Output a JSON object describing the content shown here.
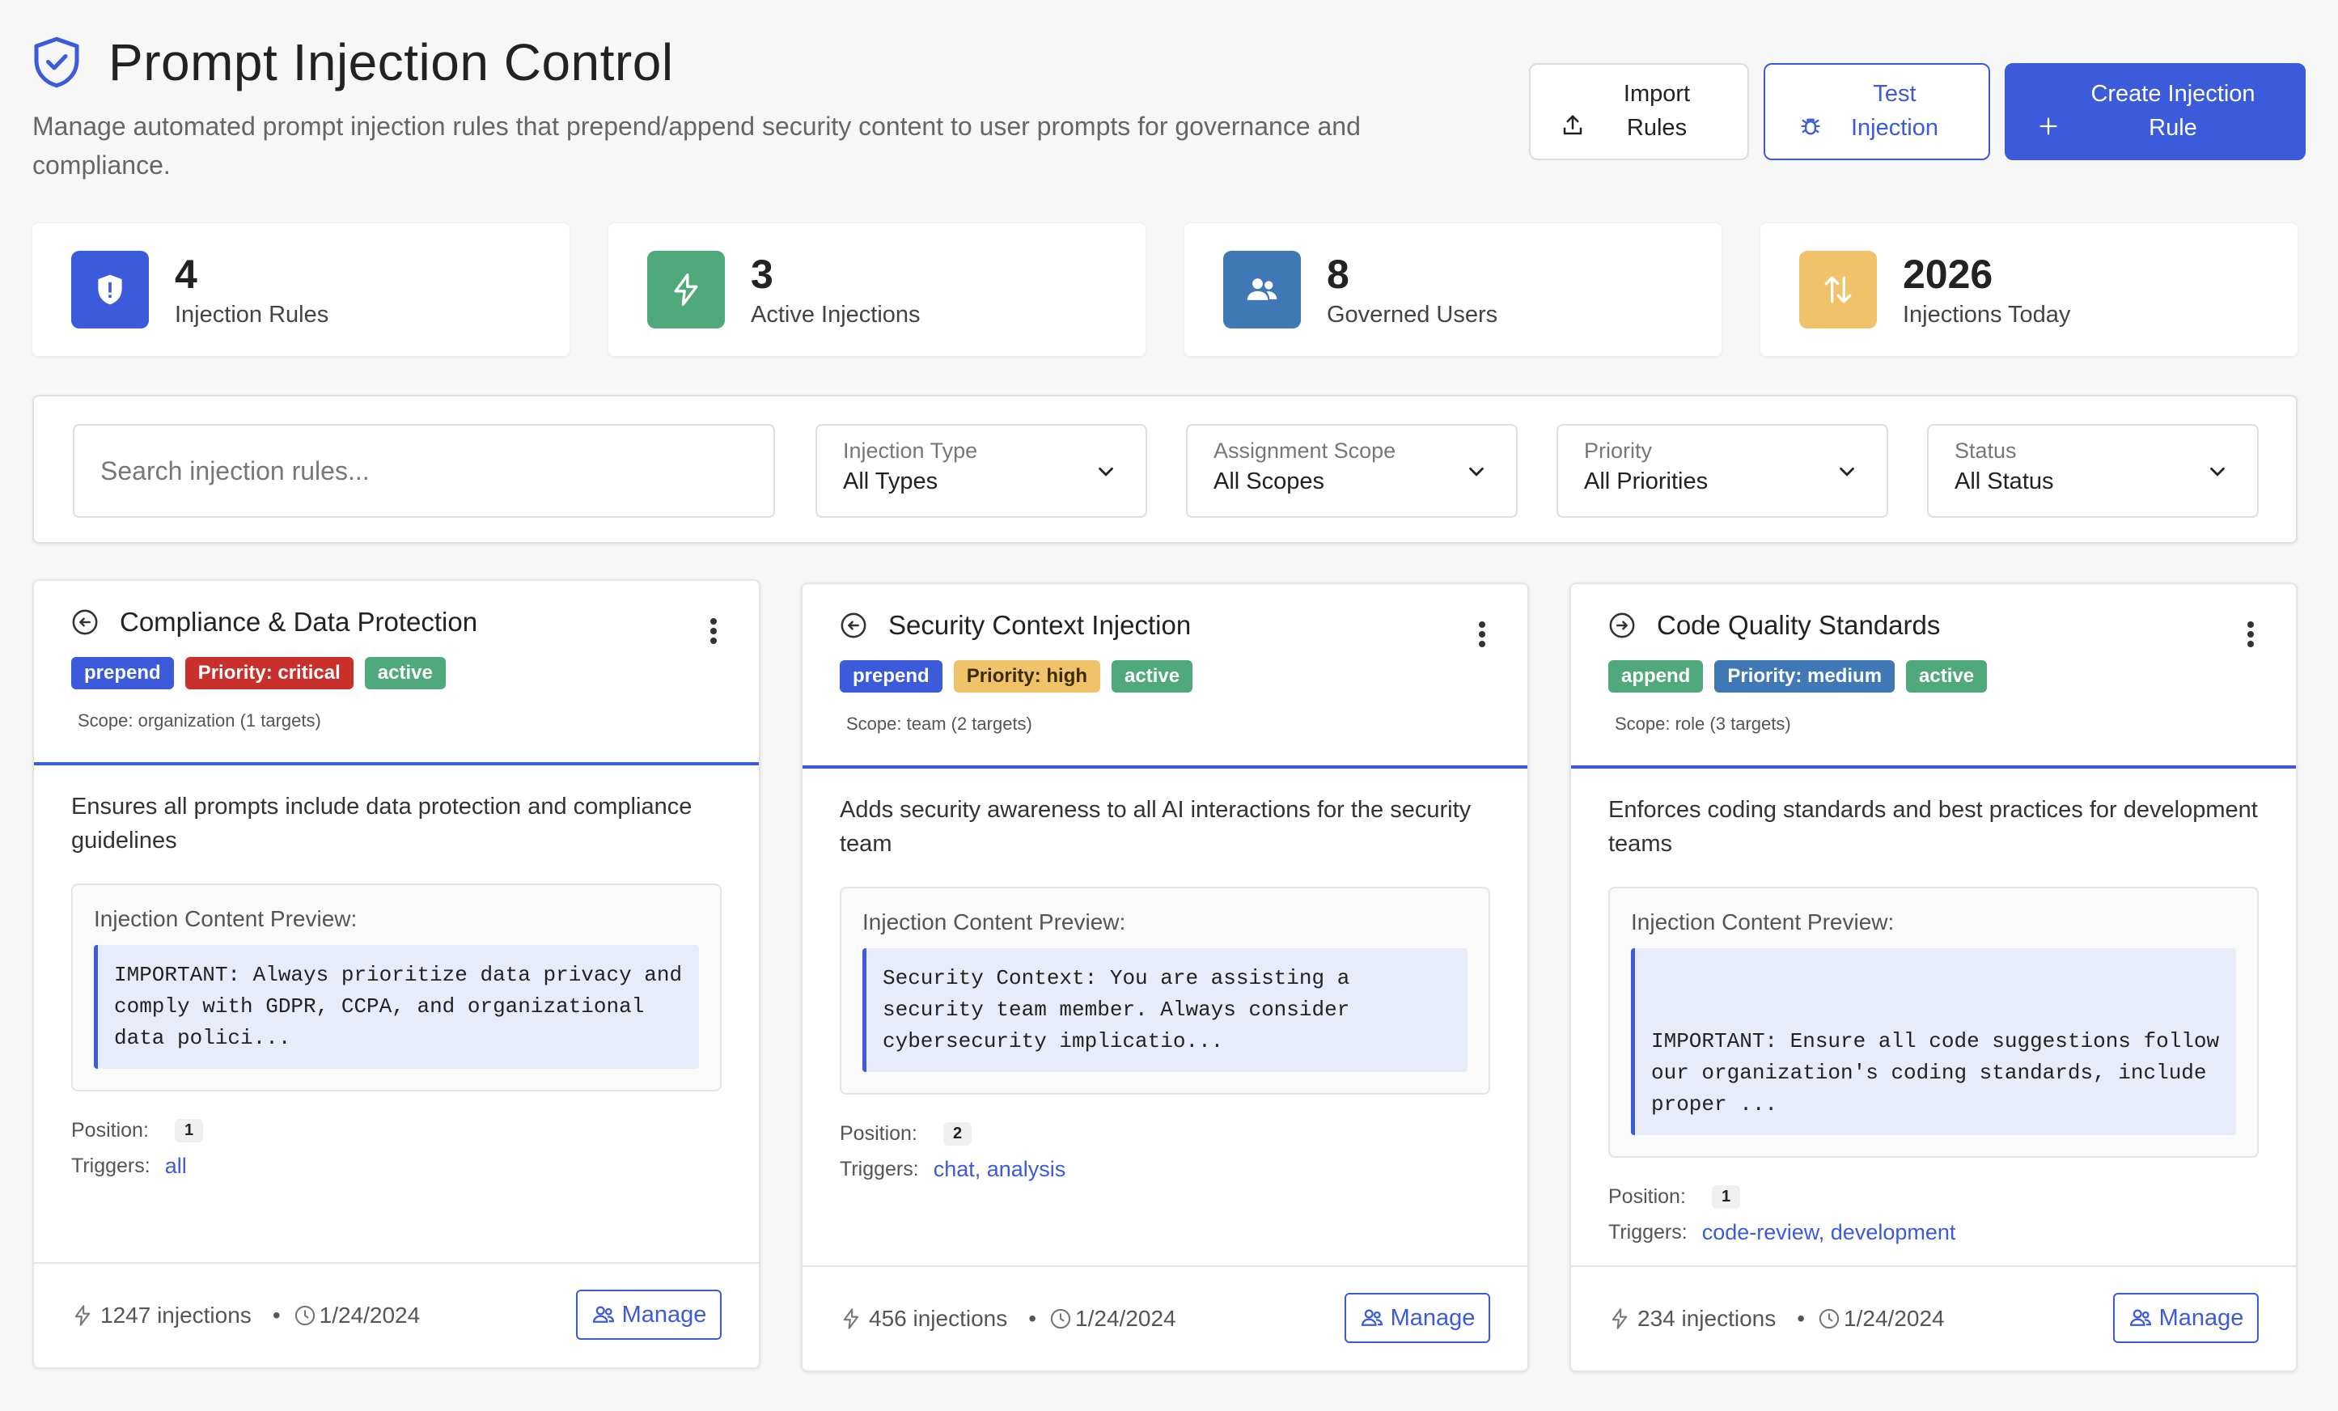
{
  "header": {
    "title": "Prompt Injection Control",
    "subtitle": "Manage automated prompt injection rules that prepend/append security content to user prompts for governance and compliance.",
    "icon": "shield-check-icon",
    "actions": {
      "import_label": "Import Rules",
      "test_label": "Test Injection",
      "create_label": "Create Injection Rule"
    }
  },
  "stats": [
    {
      "value": "4",
      "label": "Injection Rules",
      "color": "#3b5bdb",
      "icon": "shield-alert-icon"
    },
    {
      "value": "3",
      "label": "Active Injections",
      "color": "#4fa97a",
      "icon": "lightning-icon"
    },
    {
      "value": "8",
      "label": "Governed Users",
      "color": "#3f78b4",
      "icon": "users-icon"
    },
    {
      "value": "2026",
      "label": "Injections Today",
      "color": "#f0c36b",
      "icon": "arrows-up-down-icon"
    }
  ],
  "filters": {
    "search_placeholder": "Search injection rules...",
    "type": {
      "label": "Injection Type",
      "value": "All Types"
    },
    "scope": {
      "label": "Assignment Scope",
      "value": "All Scopes"
    },
    "priority": {
      "label": "Priority",
      "value": "All Priorities"
    },
    "status": {
      "label": "Status",
      "value": "All Status"
    }
  },
  "cards": [
    {
      "title": "Compliance & Data Protection",
      "type": "prepend",
      "priority": "Priority: critical",
      "status": "active",
      "scope": "Scope: organization (1 targets)",
      "description": "Ensures all prompts include data protection and compliance guidelines",
      "preview_label": "Injection Content Preview:",
      "preview": "IMPORTANT: Always prioritize data privacy and comply with GDPR, CCPA, and organizational data polici...",
      "position_label": "Position:",
      "position": "1",
      "triggers_label": "Triggers:",
      "triggers": "all",
      "injections": "1247 injections",
      "date": "1/24/2024",
      "manage_label": "Manage"
    },
    {
      "title": "Security Context Injection",
      "type": "prepend",
      "priority": "Priority: high",
      "status": "active",
      "scope": "Scope: team (2 targets)",
      "description": "Adds security awareness to all AI interactions for the security team",
      "preview_label": "Injection Content Preview:",
      "preview": "Security Context: You are assisting a security team member. Always consider cybersecurity implicatio...",
      "position_label": "Position:",
      "position": "2",
      "triggers_label": "Triggers:",
      "triggers": "chat, analysis",
      "injections": "456 injections",
      "date": "1/24/2024",
      "manage_label": "Manage"
    },
    {
      "title": "Code Quality Standards",
      "type": "append",
      "priority": "Priority: medium",
      "status": "active",
      "scope": "Scope: role (3 targets)",
      "description": "Enforces coding standards and best practices for development teams",
      "preview_label": "Injection Content Preview:",
      "preview": "\n\nIMPORTANT: Ensure all code suggestions follow our organization's coding standards, include proper ...",
      "position_label": "Position:",
      "position": "1",
      "triggers_label": "Triggers:",
      "triggers": "code-review, development",
      "injections": "234 injections",
      "date": "1/24/2024",
      "manage_label": "Manage"
    }
  ]
}
